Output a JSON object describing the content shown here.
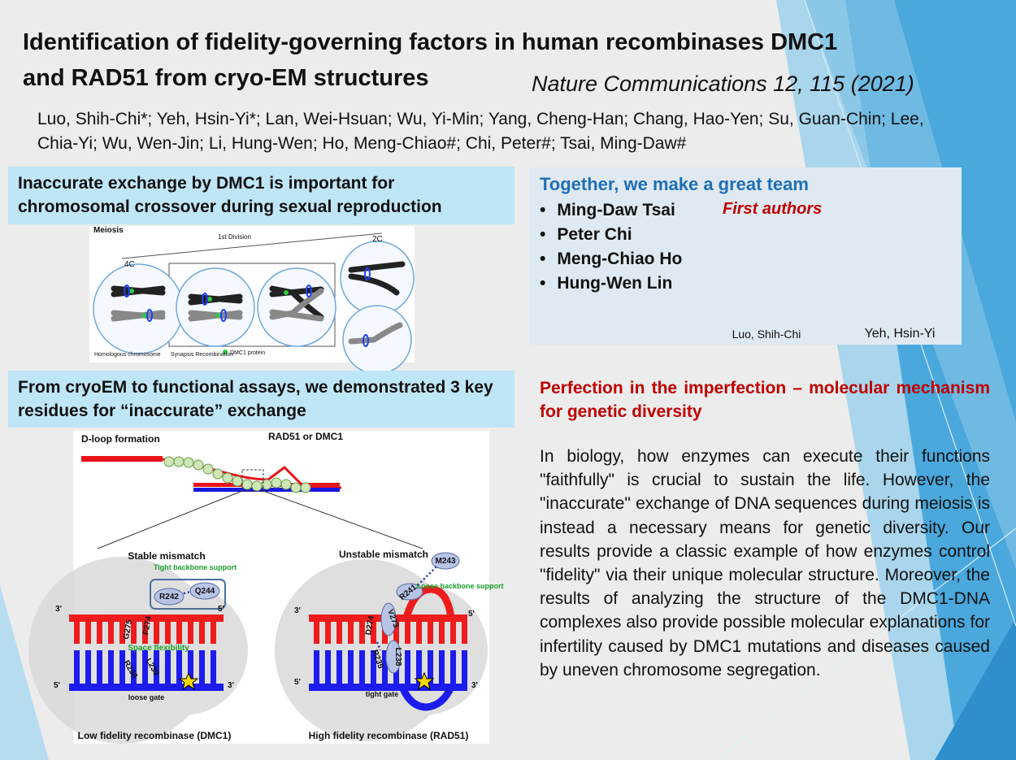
{
  "header": {
    "title": [
      "Identification of fidelity-governing factors in human recombinases DMC1",
      "and RAD51 from cryo-EM structures"
    ],
    "journal": "Nature Communications 12, 115 (2021)",
    "authors": "Luo, Shih-Chi*; Yeh, Hsin-Yi*; Lan, Wei-Hsuan; Wu, Yi-Min; Yang, Cheng-Han; Chang, Hao-Yen; Su, Guan-Chin; Lee, Chia-Yi; Wu, Wen-Jin; Li, Hung-Wen; Ho, Meng-Chiao#; Chi, Peter#; Tsai, Ming-Daw#"
  },
  "section1": {
    "heading": "Inaccurate exchange by DMC1 is important for chromosomal crossover during sexual reproduction"
  },
  "meiosis_figure": {
    "title": "Meiosis",
    "division": "1st Division",
    "left_ploidy": "4C",
    "right_ploidy": "2C",
    "homologous": "Homologous chromosome",
    "synapsis": "Synapsis Recombination",
    "legend": "DMC1 protein"
  },
  "team": {
    "heading": "Together, we make a great team",
    "members": [
      "Ming-Daw Tsai",
      "Peter Chi",
      "Meng-Chiao Ho",
      "Hung-Wen Lin"
    ],
    "first_authors": "First authors",
    "photos": [
      "Luo, Shih-Chi",
      "Yeh, Hsin-Yi"
    ]
  },
  "section2": {
    "heading": "From cryoEM to functional assays, we demonstrated 3 key residues for “inaccurate” exchange"
  },
  "dloop_figure": {
    "title": "D-loop formation",
    "protein": "RAD51 or DMC1",
    "left": {
      "heading": "Stable mismatch",
      "support": "Tight backbone support",
      "residues": [
        "R242",
        "Q244",
        "G275",
        "P274",
        "R236",
        "L239"
      ],
      "note": "Space flexibility",
      "gate": "loose gate",
      "ends": [
        "3'",
        "5'",
        "5'",
        "3'"
      ],
      "caption": "Low fidelity recombinase (DMC1)"
    },
    "right": {
      "heading": "Unstable mismatch",
      "support": "Loose backbone support",
      "residues": [
        "M243",
        "R241",
        "D274",
        "V273",
        "R235",
        "L238"
      ],
      "gate": "tight gate",
      "ends": [
        "3'",
        "5'",
        "5'",
        "3'"
      ],
      "caption": "High fidelity recombinase (RAD51)"
    }
  },
  "section3": {
    "heading": "Perfection in the imperfection – molecular mechanism for genetic diversity",
    "body": "In biology, how enzymes can execute their functions \"faithfully\" is crucial to sustain the life. However, the \"inaccurate\" exchange of DNA sequences during meiosis is instead a necessary means for genetic diversity. Our results provide a classic example of how enzymes control \"fidelity\" via their unique molecular structure. Moreover, the results of analyzing the structure of the DMC1-DNA complexes also provide possible molecular explanations for infertility caused by DMC1 mutations and diseases caused by uneven chromosome segregation."
  }
}
